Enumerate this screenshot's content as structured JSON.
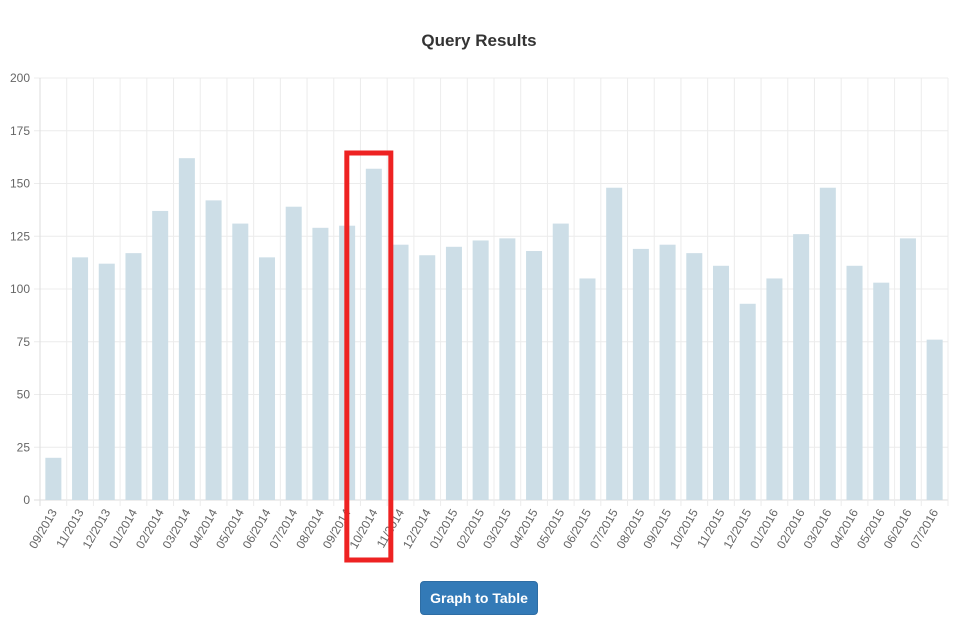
{
  "chart_data": {
    "type": "bar",
    "title": "Query Results",
    "xlabel": "",
    "ylabel": "",
    "ylim": [
      0,
      200
    ],
    "yticks": [
      0,
      25,
      50,
      75,
      100,
      125,
      150,
      175,
      200
    ],
    "grid": true,
    "categories": [
      "09/2013",
      "11/2013",
      "12/2013",
      "01/2014",
      "02/2014",
      "03/2014",
      "04/2014",
      "05/2014",
      "06/2014",
      "07/2014",
      "08/2014",
      "09/2014",
      "10/2014",
      "11/2014",
      "12/2014",
      "01/2015",
      "02/2015",
      "03/2015",
      "04/2015",
      "05/2015",
      "06/2015",
      "07/2015",
      "08/2015",
      "09/2015",
      "10/2015",
      "11/2015",
      "12/2015",
      "01/2016",
      "02/2016",
      "03/2016",
      "04/2016",
      "05/2016",
      "06/2016",
      "07/2016"
    ],
    "values": [
      20,
      115,
      112,
      117,
      137,
      162,
      142,
      131,
      115,
      139,
      129,
      130,
      157,
      121,
      116,
      120,
      123,
      124,
      118,
      131,
      105,
      148,
      119,
      121,
      117,
      111,
      93,
      105,
      126,
      148,
      111,
      103,
      124,
      76
    ],
    "highlighted_category": "10/2014",
    "colors": {
      "bar": "#cddee7",
      "highlight_box": "#ee2222",
      "grid": "#ececec",
      "axis": "#dddddd"
    }
  },
  "button": {
    "label": "Graph to Table"
  }
}
